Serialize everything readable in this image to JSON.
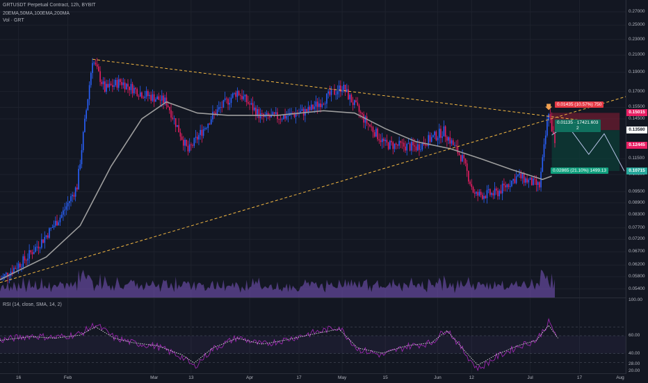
{
  "legend": {
    "title": "GRTUSDT Perpetual Contract, 12h, BYBIT",
    "indicators": "20EMA,50MA,100EMA,200MA",
    "volume": "Vol · GRT",
    "rsi": "RSI (14, close, SMA, 14, 2)"
  },
  "colors": {
    "background": "#131722",
    "up": "#2962ff",
    "down": "#e91e63",
    "ma": "#9e9e9e",
    "trendline": "#f5b942",
    "rsi": "#9c27b0",
    "stop_zone": "#8b1e35",
    "target_zone": "#0d3b36",
    "projection": "#b8c4e8",
    "arrow": "#f0a050"
  },
  "price_axis": {
    "ticks": [
      "0.27000",
      "0.25000",
      "0.23000",
      "0.21000",
      "0.19000",
      "0.17000",
      "0.15500",
      "0.14500",
      "0.11500",
      "0.10500",
      "0.09500",
      "0.08900",
      "0.08300",
      "0.07700",
      "0.07200",
      "0.06700",
      "0.06200",
      "0.05800",
      "0.05400"
    ],
    "badges": [
      {
        "text": "0.15015",
        "color": "#e91e63"
      },
      {
        "text": "0.13580",
        "color": "#ffffff"
      },
      {
        "text": "0.12445",
        "color": "#e91e63"
      },
      {
        "text": "0.10715",
        "color": "#26a69a"
      }
    ]
  },
  "rsi_axis": {
    "ticks": [
      "100.00",
      "60.00",
      "40.00",
      "28.00",
      "20.00"
    ]
  },
  "time_axis": {
    "ticks": [
      "16",
      "Feb",
      "Mar",
      "13",
      "Apr",
      "17",
      "May",
      "15",
      "Jun",
      "12",
      "Jul",
      "17",
      "Aug"
    ]
  },
  "position": {
    "stop_label": "0.01435 (10.57%) 750",
    "entry_label": "0.01135 · 17421.603",
    "entry_sub": "2",
    "target_label": "0.02865 (21.10%) 1499.13"
  },
  "chart_data": {
    "type": "candlestick",
    "title": "GRTUSDT Perpetual Contract, 12h, BYBIT",
    "xlabel": "",
    "ylabel": "",
    "scale": "log",
    "x_range": [
      "2022-01-10",
      "2022-08-01"
    ],
    "ylim": [
      0.052,
      0.28
    ],
    "grid": true,
    "price_path": [
      [
        "2022-01-10",
        0.057
      ],
      [
        "2022-01-18",
        0.064
      ],
      [
        "2022-01-24",
        0.072
      ],
      [
        "2022-01-30",
        0.083
      ],
      [
        "2022-02-04",
        0.098
      ],
      [
        "2022-02-09",
        0.205
      ],
      [
        "2022-02-13",
        0.172
      ],
      [
        "2022-02-18",
        0.18
      ],
      [
        "2022-02-25",
        0.168
      ],
      [
        "2022-03-05",
        0.16
      ],
      [
        "2022-03-12",
        0.12
      ],
      [
        "2022-03-20",
        0.148
      ],
      [
        "2022-03-28",
        0.17
      ],
      [
        "2022-04-05",
        0.146
      ],
      [
        "2022-04-12",
        0.147
      ],
      [
        "2022-04-20",
        0.152
      ],
      [
        "2022-05-01",
        0.175
      ],
      [
        "2022-05-08",
        0.145
      ],
      [
        "2022-05-15",
        0.125
      ],
      [
        "2022-05-25",
        0.123
      ],
      [
        "2022-06-03",
        0.135
      ],
      [
        "2022-06-09",
        0.115
      ],
      [
        "2022-06-13",
        0.093
      ],
      [
        "2022-06-20",
        0.094
      ],
      [
        "2022-06-27",
        0.104
      ],
      [
        "2022-07-04",
        0.098
      ],
      [
        "2022-07-07",
        0.152
      ],
      [
        "2022-07-09",
        0.124
      ]
    ],
    "series": [
      {
        "name": "",
        "type": "moving-average",
        "values": [
          [
            "2022-01-10",
            0.057
          ],
          [
            "2022-01-25",
            0.065
          ],
          [
            "2022-02-05",
            0.078
          ],
          [
            "2022-02-15",
            0.11
          ],
          [
            "2022-02-25",
            0.145
          ],
          [
            "2022-03-05",
            0.16
          ],
          [
            "2022-03-15",
            0.15
          ],
          [
            "2022-03-25",
            0.148
          ],
          [
            "2022-04-10",
            0.148
          ],
          [
            "2022-04-25",
            0.152
          ],
          [
            "2022-05-05",
            0.15
          ],
          [
            "2022-05-15",
            0.137
          ],
          [
            "2022-05-25",
            0.127
          ],
          [
            "2022-06-05",
            0.122
          ],
          [
            "2022-06-15",
            0.115
          ],
          [
            "2022-06-25",
            0.108
          ],
          [
            "2022-07-05",
            0.102
          ],
          [
            "2022-07-08",
            0.104
          ]
        ]
      }
    ],
    "trendlines": [
      {
        "from": [
          "2022-02-09",
          0.205
        ],
        "to": [
          "2022-07-20",
          0.143
        ]
      },
      {
        "from": [
          "2022-01-10",
          0.056
        ],
        "to": [
          "2022-08-01",
          0.165
        ]
      }
    ],
    "rsi": {
      "ylim": [
        20,
        100
      ],
      "bands": [
        60,
        40
      ],
      "values": [
        [
          "2022-01-10",
          55
        ],
        [
          "2022-01-20",
          60
        ],
        [
          "2022-01-28",
          58
        ],
        [
          "2022-02-05",
          62
        ],
        [
          "2022-02-10",
          73
        ],
        [
          "2022-02-16",
          58
        ],
        [
          "2022-02-22",
          52
        ],
        [
          "2022-03-02",
          48
        ],
        [
          "2022-03-10",
          36
        ],
        [
          "2022-03-14",
          25
        ],
        [
          "2022-03-20",
          45
        ],
        [
          "2022-03-28",
          58
        ],
        [
          "2022-04-05",
          50
        ],
        [
          "2022-04-12",
          55
        ],
        [
          "2022-04-20",
          62
        ],
        [
          "2022-04-30",
          70
        ],
        [
          "2022-05-06",
          45
        ],
        [
          "2022-05-14",
          38
        ],
        [
          "2022-05-22",
          48
        ],
        [
          "2022-05-30",
          52
        ],
        [
          "2022-06-04",
          68
        ],
        [
          "2022-06-10",
          40
        ],
        [
          "2022-06-14",
          22
        ],
        [
          "2022-06-20",
          36
        ],
        [
          "2022-06-27",
          48
        ],
        [
          "2022-07-03",
          55
        ],
        [
          "2022-07-07",
          75
        ],
        [
          "2022-07-10",
          58
        ]
      ]
    }
  }
}
